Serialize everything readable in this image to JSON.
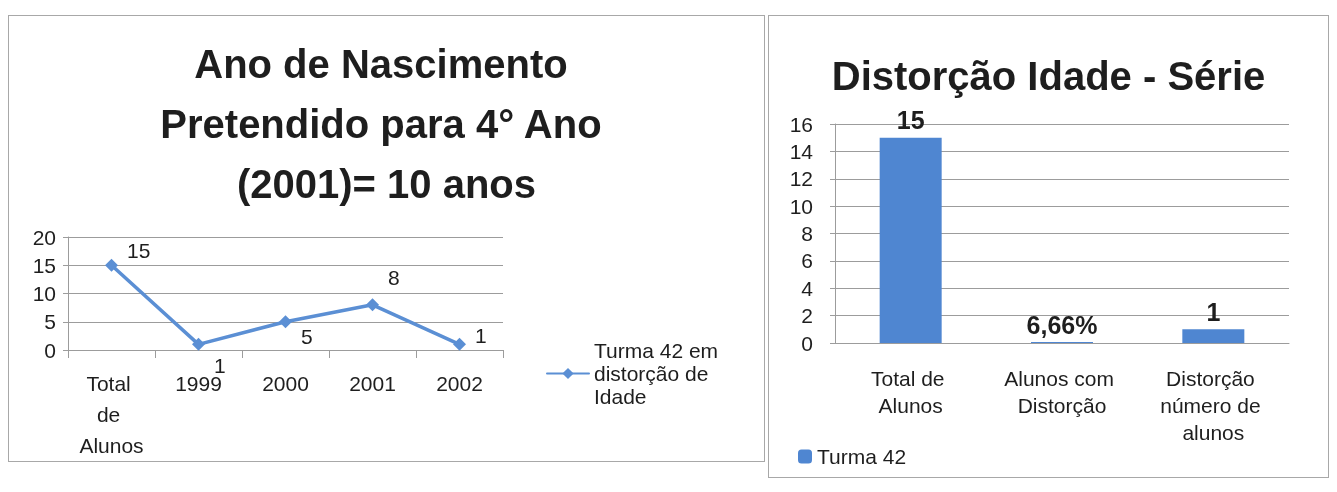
{
  "chart_data": [
    {
      "type": "line",
      "title": "Ano de Nascimento Pretendido para 4° Ano (2001)= 10 anos",
      "categories": [
        "Total de Alunos",
        "1999",
        "2000",
        "2001",
        "2002"
      ],
      "series": [
        {
          "name": "Turma 42 em distorção de Idade",
          "color": "#5b8fd4",
          "values": [
            15,
            1,
            5,
            8,
            1
          ]
        }
      ],
      "ylim": [
        0,
        20
      ],
      "yticks": [
        0,
        5,
        10,
        15,
        20
      ],
      "grid": "y",
      "legend": "right",
      "marker": "diamond",
      "data_labels": true
    },
    {
      "type": "bar",
      "title": "Distorção Idade - Série",
      "categories": [
        "Total de Alunos",
        "Alunos com Distorção",
        "Distorção número de alunos"
      ],
      "series": [
        {
          "name": "Turma 42",
          "color": "#4f86d1",
          "values": [
            15,
            0.0666,
            1
          ],
          "value_labels": [
            "15",
            "6,66%",
            "1"
          ]
        }
      ],
      "ylim": [
        0,
        16
      ],
      "yticks": [
        0,
        2,
        4,
        6,
        8,
        10,
        12,
        14,
        16
      ],
      "grid": "y",
      "legend": "bottom left"
    }
  ]
}
